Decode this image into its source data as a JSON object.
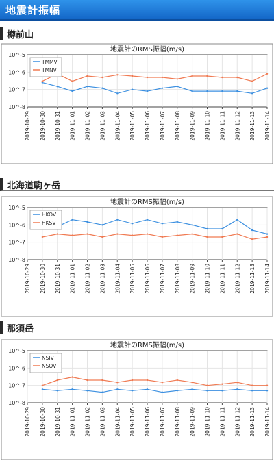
{
  "page": {
    "title": "地震計振幅"
  },
  "sections": [
    {
      "name": "樽前山"
    },
    {
      "name": "北海道駒ヶ岳"
    },
    {
      "name": "那須岳"
    }
  ],
  "chart_data": [
    {
      "type": "line",
      "title": "地震計のRMS振幅(m/s)",
      "log_y": true,
      "y_tick_labels": [
        "10^-5",
        "10^-6",
        "10^-7",
        "10^-8"
      ],
      "ylim": [
        "10^-8",
        "10^-5"
      ],
      "x_tick_labels": [
        "2019-10-29",
        "2019-10-30",
        "2019-10-31",
        "2019-11-01",
        "2019-11-02",
        "2019-11-03",
        "2019-11-04",
        "2019-11-05",
        "2019-11-06",
        "2019-11-07",
        "2019-11-08",
        "2019-11-09",
        "2019-11-10",
        "2019-11-11",
        "2019-11-12",
        "2019-11-13",
        "2019-11-14"
      ],
      "grid": true,
      "legend_position": "top-left",
      "series": [
        {
          "name": "TMMV",
          "color": "#3b8fe0",
          "x": [
            "2019-10-30",
            "2019-10-31",
            "2019-11-01",
            "2019-11-02",
            "2019-11-03",
            "2019-11-04",
            "2019-11-05",
            "2019-11-06",
            "2019-11-07",
            "2019-11-08",
            "2019-11-09",
            "2019-11-10",
            "2019-11-11",
            "2019-11-12",
            "2019-11-13",
            "2019-11-14"
          ],
          "values": [
            2.5e-07,
            1.5e-07,
            8e-08,
            1.5e-07,
            1.2e-07,
            6e-08,
            1e-07,
            8e-08,
            1.2e-07,
            1.5e-07,
            8e-08,
            8e-08,
            8e-08,
            8e-08,
            6e-08,
            1.2e-07
          ]
        },
        {
          "name": "TMNV",
          "color": "#f07a52",
          "x": [
            "2019-10-30",
            "2019-10-31",
            "2019-11-01",
            "2019-11-02",
            "2019-11-03",
            "2019-11-04",
            "2019-11-05",
            "2019-11-06",
            "2019-11-07",
            "2019-11-08",
            "2019-11-09",
            "2019-11-10",
            "2019-11-11",
            "2019-11-12",
            "2019-11-13",
            "2019-11-14"
          ],
          "values": [
            3e-07,
            8e-07,
            3e-07,
            6e-07,
            5e-07,
            7e-07,
            6e-07,
            5e-07,
            5e-07,
            4e-07,
            6e-07,
            6e-07,
            5e-07,
            5e-07,
            3e-07,
            8e-07
          ]
        }
      ]
    },
    {
      "type": "line",
      "title": "地震計のRMS振幅(m/s)",
      "log_y": true,
      "y_tick_labels": [
        "10^-5",
        "10^-6",
        "10^-7",
        "10^-8"
      ],
      "ylim": [
        "10^-8",
        "10^-5"
      ],
      "x_tick_labels": [
        "2019-10-29",
        "2019-10-30",
        "2019-10-31",
        "2019-11-01",
        "2019-11-02",
        "2019-11-03",
        "2019-11-04",
        "2019-11-05",
        "2019-11-06",
        "2019-11-07",
        "2019-11-08",
        "2019-11-09",
        "2019-11-10",
        "2019-11-11",
        "2019-11-12",
        "2019-11-13",
        "2019-11-14"
      ],
      "grid": true,
      "legend_position": "top-left",
      "series": [
        {
          "name": "HKOV",
          "color": "#3b8fe0",
          "x": [
            "2019-10-30",
            "2019-10-31",
            "2019-11-01",
            "2019-11-02",
            "2019-11-03",
            "2019-11-04",
            "2019-11-05",
            "2019-11-06",
            "2019-11-07",
            "2019-11-08",
            "2019-11-09",
            "2019-11-10",
            "2019-11-11",
            "2019-11-12",
            "2019-11-13",
            "2019-11-14"
          ],
          "values": [
            1e-06,
            8e-07,
            2e-06,
            1.5e-06,
            1e-06,
            2e-06,
            1.2e-06,
            2e-06,
            1.2e-06,
            1.5e-06,
            1e-06,
            6e-07,
            6e-07,
            2e-06,
            5e-07,
            3e-07
          ]
        },
        {
          "name": "HKSV",
          "color": "#f07a52",
          "x": [
            "2019-10-30",
            "2019-10-31",
            "2019-11-01",
            "2019-11-02",
            "2019-11-03",
            "2019-11-04",
            "2019-11-05",
            "2019-11-06",
            "2019-11-07",
            "2019-11-08",
            "2019-11-09",
            "2019-11-10",
            "2019-11-11",
            "2019-11-12",
            "2019-11-13",
            "2019-11-14"
          ],
          "values": [
            2e-07,
            3e-07,
            2.5e-07,
            3e-07,
            2e-07,
            3e-07,
            2.5e-07,
            3e-07,
            2e-07,
            2.5e-07,
            3e-07,
            2e-07,
            2e-07,
            3e-07,
            1.5e-07,
            2e-07
          ]
        }
      ]
    },
    {
      "type": "line",
      "title": "地震計のRMS振幅(m/s)",
      "log_y": true,
      "y_tick_labels": [
        "10^-5",
        "10^-6",
        "10^-7",
        "10^-8"
      ],
      "ylim": [
        "10^-8",
        "10^-5"
      ],
      "x_tick_labels": [
        "2019-10-29",
        "2019-10-30",
        "2019-10-31",
        "2019-11-01",
        "2019-11-02",
        "2019-11-03",
        "2019-11-04",
        "2019-11-05",
        "2019-11-06",
        "2019-11-07",
        "2019-11-08",
        "2019-11-09",
        "2019-11-10",
        "2019-11-11",
        "2019-11-12",
        "2019-11-13",
        "2019-11-14"
      ],
      "grid": true,
      "legend_position": "top-left",
      "series": [
        {
          "name": "NSIV",
          "color": "#3b8fe0",
          "x": [
            "2019-10-30",
            "2019-10-31",
            "2019-11-01",
            "2019-11-02",
            "2019-11-03",
            "2019-11-04",
            "2019-11-05",
            "2019-11-06",
            "2019-11-07",
            "2019-11-08",
            "2019-11-09",
            "2019-11-10",
            "2019-11-11",
            "2019-11-12",
            "2019-11-13",
            "2019-11-14"
          ],
          "values": [
            6e-08,
            5e-08,
            6e-08,
            5e-08,
            4e-08,
            6e-08,
            5e-08,
            6e-08,
            4e-08,
            5e-08,
            6e-08,
            5e-08,
            5e-08,
            6e-08,
            5e-08,
            5e-08
          ]
        },
        {
          "name": "NSOV",
          "color": "#f07a52",
          "x": [
            "2019-10-30",
            "2019-10-31",
            "2019-11-01",
            "2019-11-02",
            "2019-11-03",
            "2019-11-04",
            "2019-11-05",
            "2019-11-06",
            "2019-11-07",
            "2019-11-08",
            "2019-11-09",
            "2019-11-10",
            "2019-11-11",
            "2019-11-12",
            "2019-11-13",
            "2019-11-14"
          ],
          "values": [
            1e-07,
            2e-07,
            3e-07,
            2e-07,
            2e-07,
            1.5e-07,
            2e-07,
            2e-07,
            1.5e-07,
            2e-07,
            1.5e-07,
            1e-07,
            1.2e-07,
            1.5e-07,
            1e-07,
            1e-07
          ]
        }
      ]
    }
  ]
}
